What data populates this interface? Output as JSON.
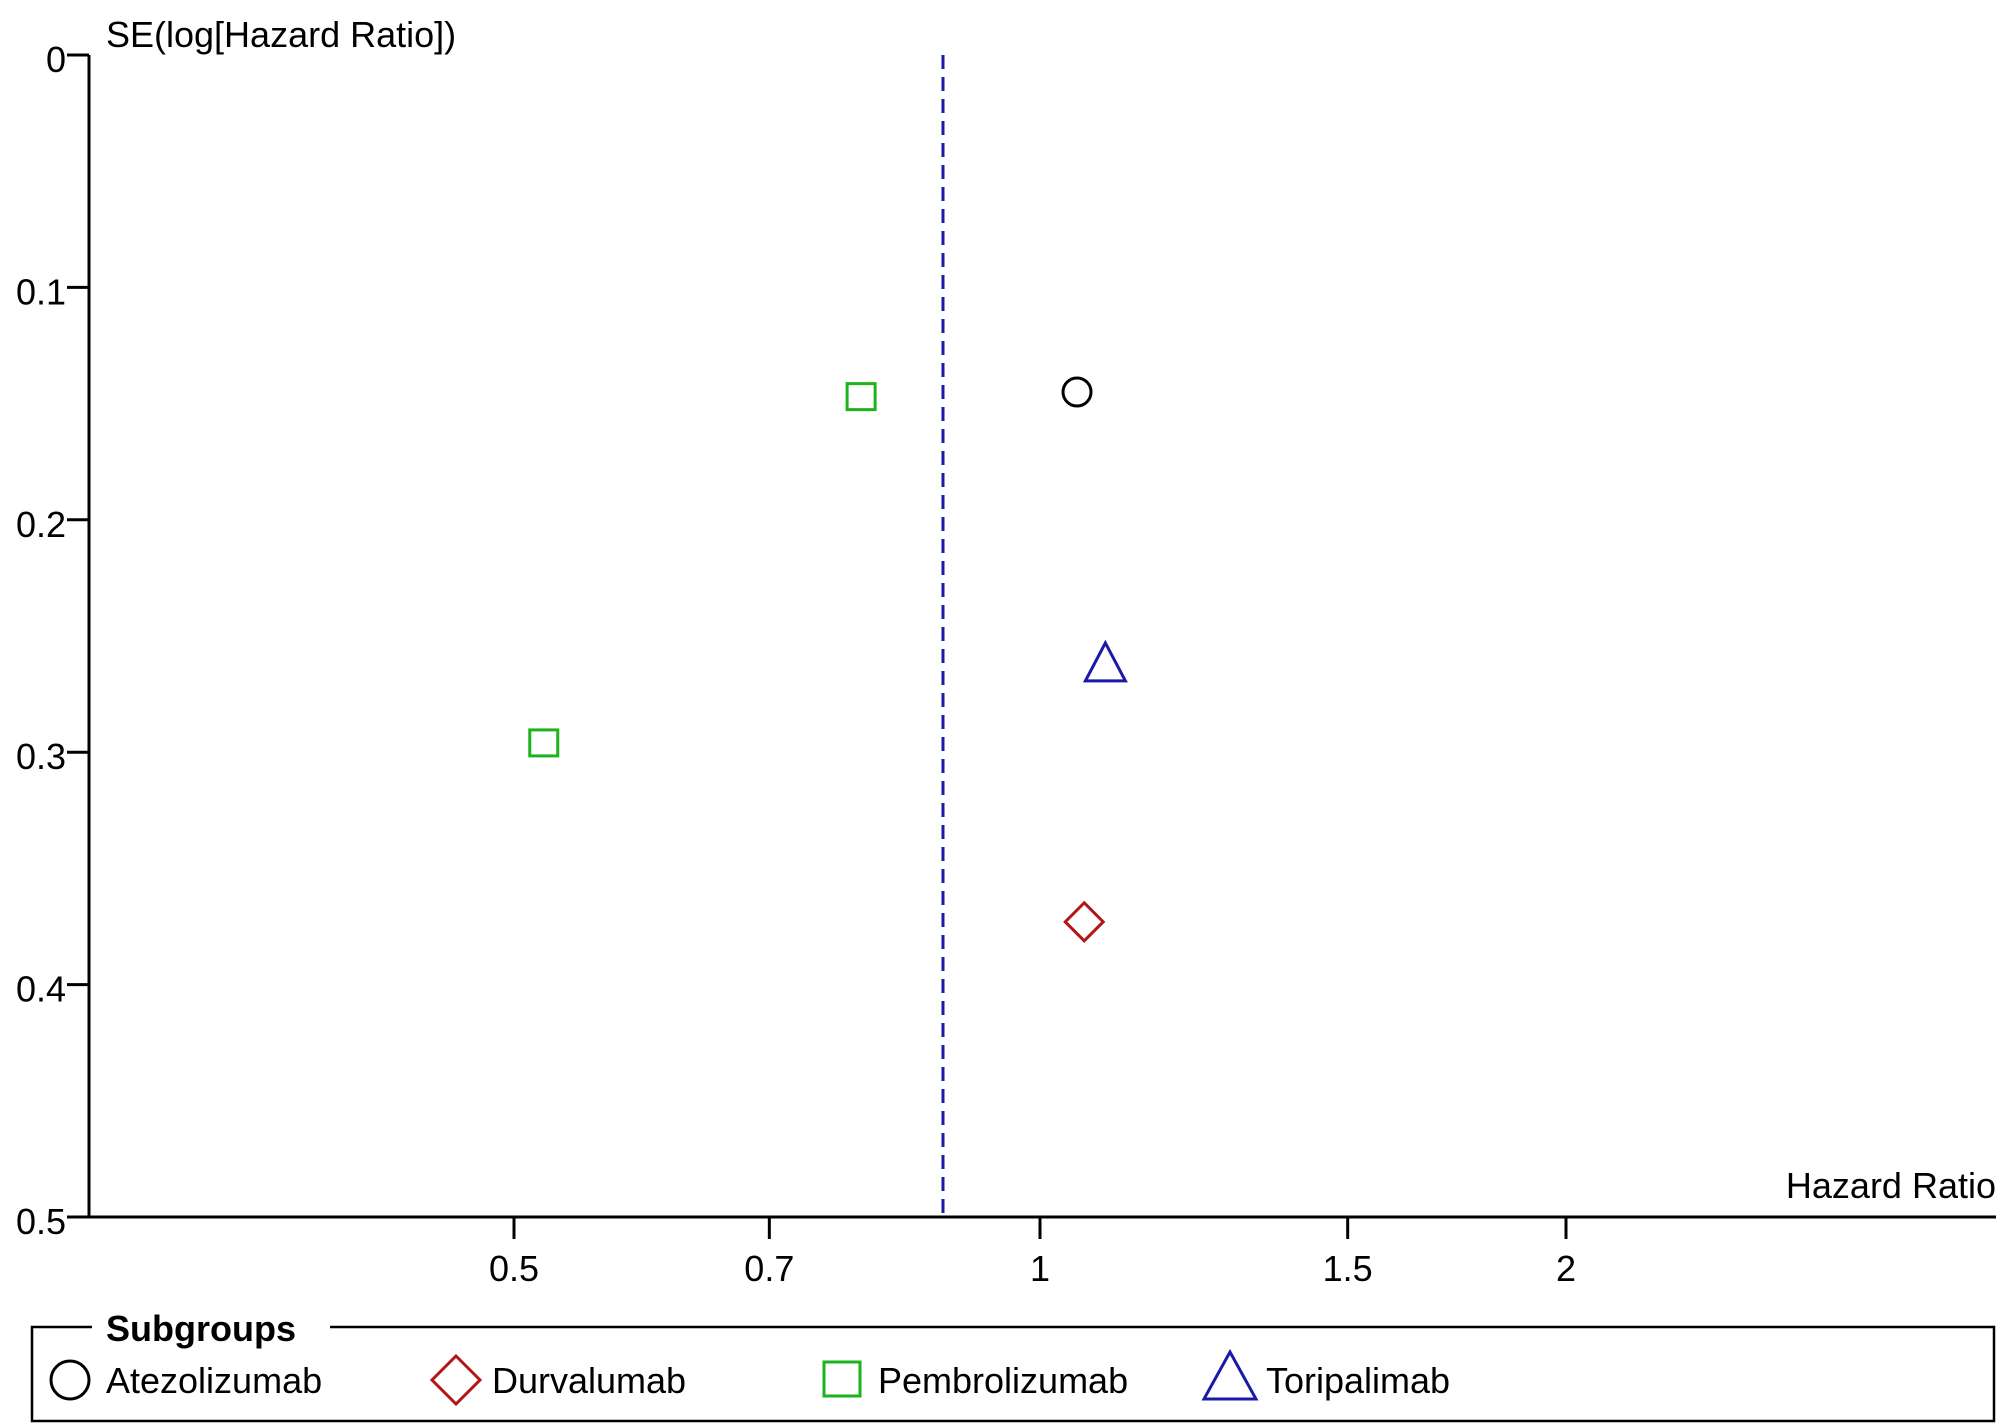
{
  "chart_data": {
    "type": "scatter",
    "title": "",
    "ylabel": "SE(log[Hazard Ratio])",
    "xlabel": "Hazard Ratio",
    "x_scale": "log",
    "y_inverted": true,
    "ylim": [
      0,
      0.5
    ],
    "xlim": [
      0.3,
      3.0
    ],
    "x_ticks": [
      0.5,
      0.7,
      1,
      1.5,
      2
    ],
    "x_tick_labels": [
      "0.5",
      "0.7",
      "1",
      "1.5",
      "2"
    ],
    "y_ticks": [
      0,
      0.1,
      0.2,
      0.3,
      0.4,
      0.5
    ],
    "y_tick_labels": [
      "0",
      "0.1",
      "0.2",
      "0.3",
      "0.4",
      "0.5"
    ],
    "reference_line": {
      "x": 0.88,
      "style": "dashed",
      "color": "#1a1aa6"
    },
    "series": [
      {
        "name": "Atezolizumab",
        "marker": "circle",
        "color": "#000000",
        "points": [
          {
            "x": 1.05,
            "y": 0.145
          }
        ]
      },
      {
        "name": "Durvalumab",
        "marker": "diamond",
        "color": "#b01818",
        "points": [
          {
            "x": 1.06,
            "y": 0.373
          }
        ]
      },
      {
        "name": "Pembrolizumab",
        "marker": "square",
        "color": "#1db31d",
        "points": [
          {
            "x": 0.79,
            "y": 0.147
          },
          {
            "x": 0.52,
            "y": 0.296
          }
        ]
      },
      {
        "name": "Toripalimab",
        "marker": "triangle",
        "color": "#1a1aa6",
        "points": [
          {
            "x": 1.09,
            "y": 0.262
          }
        ]
      }
    ],
    "legend": {
      "title": "Subgroups",
      "position": "bottom"
    }
  }
}
